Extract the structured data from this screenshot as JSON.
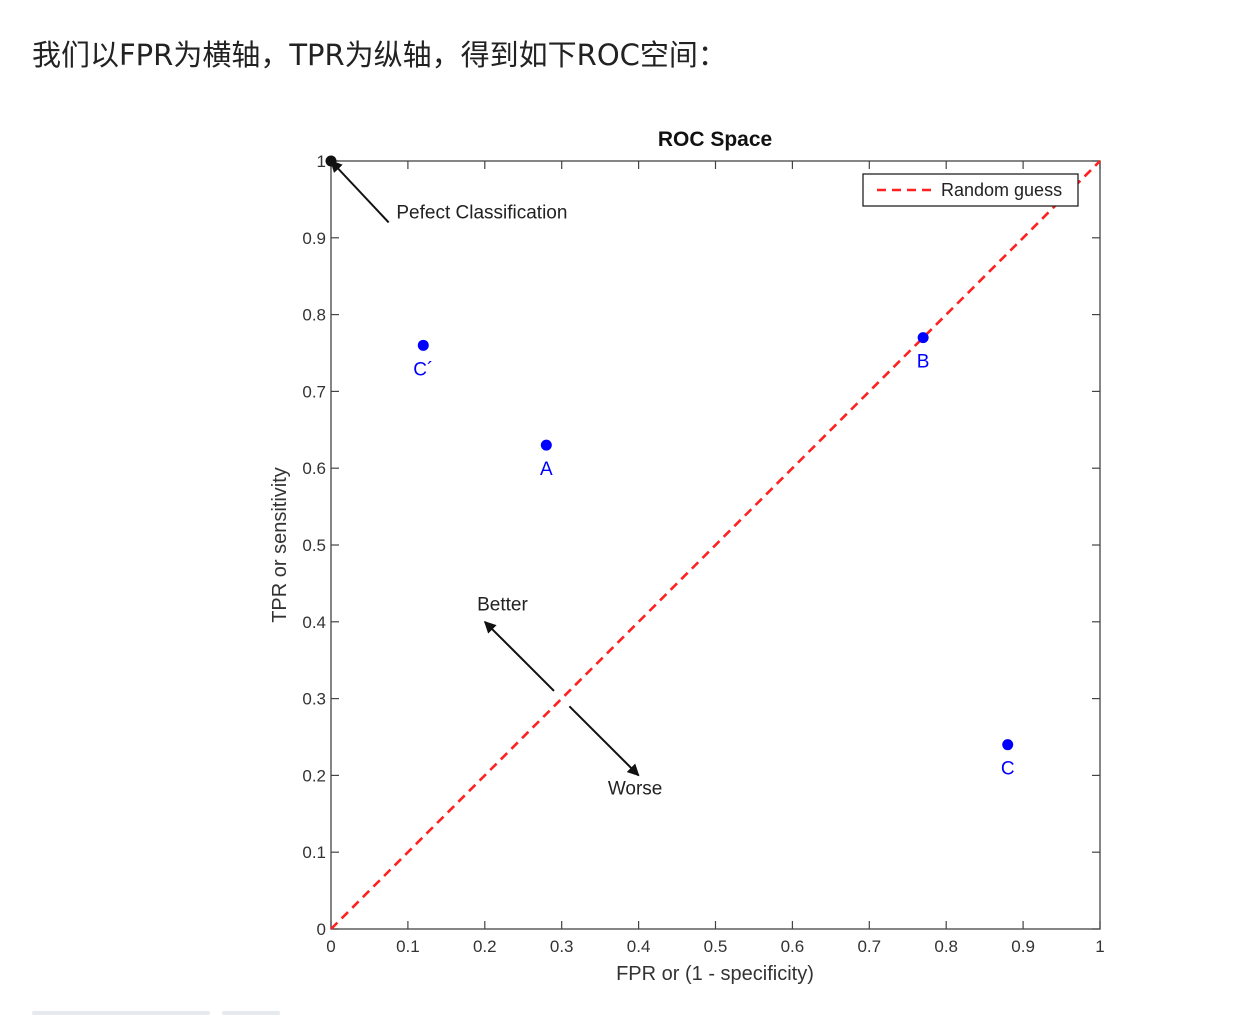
{
  "page": {
    "intro_text": "我们以FPR为横轴，TPR为纵轴，得到如下ROC空间："
  },
  "colors": {
    "point": "#0000ff",
    "random_line": "#ff2020",
    "axis": "#444444",
    "text": "#222222"
  },
  "chart_data": {
    "type": "scatter",
    "title": "ROC Space",
    "xlabel": "FPR or (1 - specificity)",
    "ylabel": "TPR or sensitivity",
    "xlim": [
      0,
      1
    ],
    "ylim": [
      0,
      1
    ],
    "xticks": [
      0,
      0.1,
      0.2,
      0.3,
      0.4,
      0.5,
      0.6,
      0.7,
      0.8,
      0.9,
      1
    ],
    "yticks": [
      0,
      0.1,
      0.2,
      0.3,
      0.4,
      0.5,
      0.6,
      0.7,
      0.8,
      0.9,
      1
    ],
    "xtick_labels": [
      "0",
      "0.1",
      "0.2",
      "0.3",
      "0.4",
      "0.5",
      "0.6",
      "0.7",
      "0.8",
      "0.9",
      "1"
    ],
    "ytick_labels": [
      "0",
      "0.1",
      "0.2",
      "0.3",
      "0.4",
      "0.5",
      "0.6",
      "0.7",
      "0.8",
      "0.9",
      "1"
    ],
    "grid": false,
    "points": [
      {
        "label": "A",
        "x": 0.28,
        "y": 0.63
      },
      {
        "label": "B",
        "x": 0.77,
        "y": 0.77
      },
      {
        "label": "C",
        "x": 0.88,
        "y": 0.24
      },
      {
        "label": "C´",
        "x": 0.12,
        "y": 0.76
      }
    ],
    "perfect_point": {
      "x": 0,
      "y": 1
    },
    "random_guess_line": {
      "from": [
        0,
        0
      ],
      "to": [
        1,
        1
      ],
      "style": "dashed"
    },
    "legend": {
      "placement": "top-right",
      "entries": [
        "Random guess"
      ]
    },
    "annotations": [
      {
        "text": "Pefect Classification",
        "arrow_to": [
          0,
          1
        ],
        "arrow_from": [
          0.075,
          0.92
        ],
        "text_at": [
          0.085,
          0.925
        ]
      },
      {
        "text": "Better",
        "arrow_to": [
          0.2,
          0.4
        ],
        "arrow_from": [
          0.29,
          0.31
        ],
        "text_at": [
          0.19,
          0.415
        ]
      },
      {
        "text": "Worse",
        "arrow_to": [
          0.4,
          0.2
        ],
        "arrow_from": [
          0.31,
          0.29
        ],
        "text_at": [
          0.36,
          0.175
        ]
      }
    ]
  }
}
